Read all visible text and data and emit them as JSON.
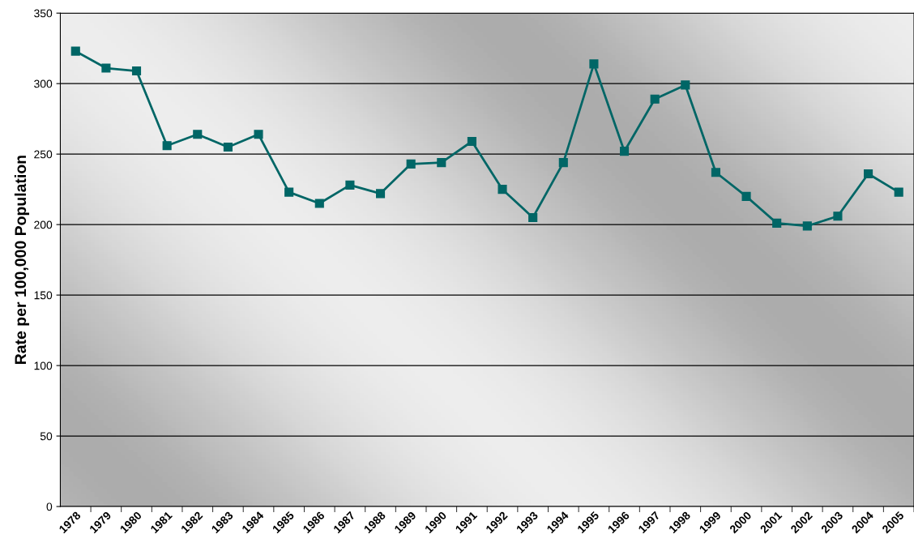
{
  "chart_data": {
    "type": "line",
    "ylabel": "Rate per 100,000 Population",
    "categories": [
      "1978",
      "1979",
      "1980",
      "1981",
      "1982",
      "1983",
      "1984",
      "1985",
      "1986",
      "1987",
      "1988",
      "1989",
      "1990",
      "1991",
      "1992",
      "1993",
      "1994",
      "1995",
      "1996",
      "1997",
      "1998",
      "1999",
      "2000",
      "2001",
      "2002",
      "2003",
      "2004",
      "2005"
    ],
    "series": [
      {
        "color": "#006666",
        "values": [
          323,
          311,
          309,
          256,
          264,
          255,
          264,
          223,
          215,
          228,
          222,
          243,
          244,
          259,
          225,
          205,
          244,
          314,
          252,
          289,
          299,
          237,
          220,
          201,
          199,
          206,
          236,
          223
        ]
      }
    ],
    "ylim": [
      0,
      350
    ],
    "yticks": [
      0,
      50,
      100,
      150,
      200,
      250,
      300,
      350
    ],
    "grid": "y",
    "marker": "square",
    "line_style": "solid"
  }
}
